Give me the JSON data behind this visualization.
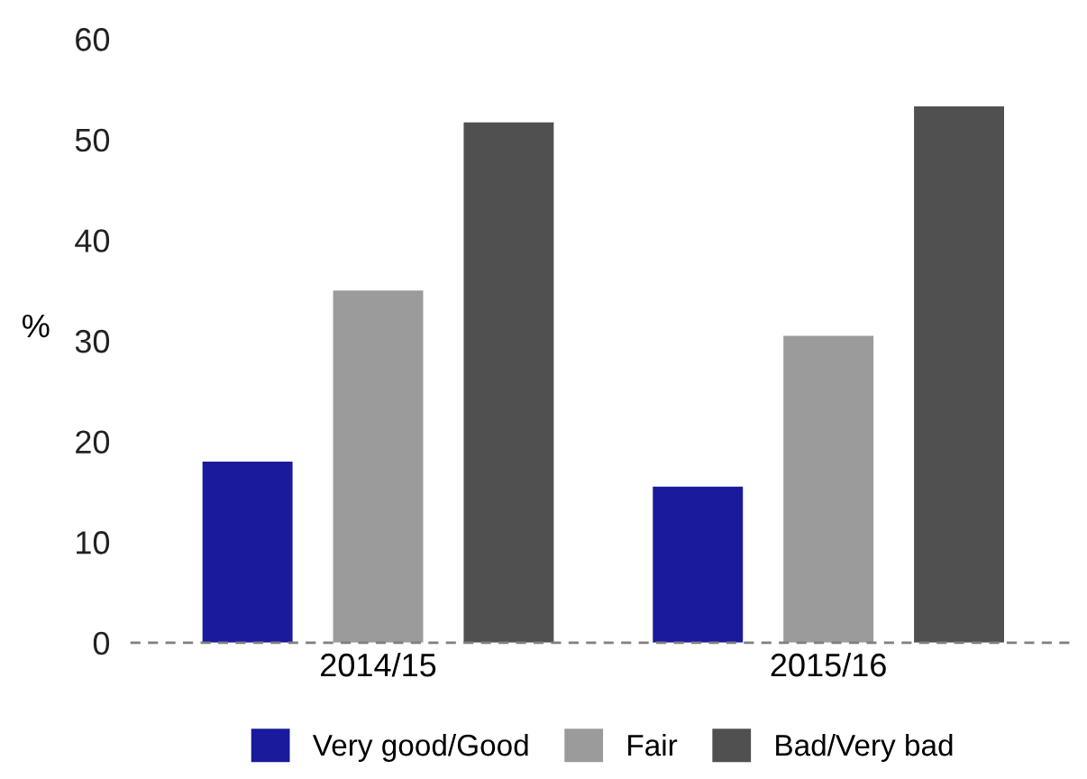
{
  "chart_data": {
    "type": "bar",
    "ylabel": "%",
    "categories": [
      "2014/15",
      "2015/16"
    ],
    "series": [
      {
        "name": "Very good/Good",
        "color": "#1a1a9c",
        "values": [
          18,
          15.5
        ]
      },
      {
        "name": "Fair",
        "color": "#9b9b9b",
        "values": [
          35,
          30.5
        ]
      },
      {
        "name": "Bad/Very bad",
        "color": "#505050",
        "values": [
          51.7,
          53.3
        ]
      }
    ],
    "ylim": [
      0,
      60
    ],
    "yticks": [
      0,
      10,
      20,
      30,
      40,
      50,
      60
    ],
    "grid": false,
    "legend": "bottom",
    "ref_lines": [
      {
        "axis": "y",
        "value": 0,
        "color": "#808080",
        "line_style": "dashed"
      }
    ]
  }
}
